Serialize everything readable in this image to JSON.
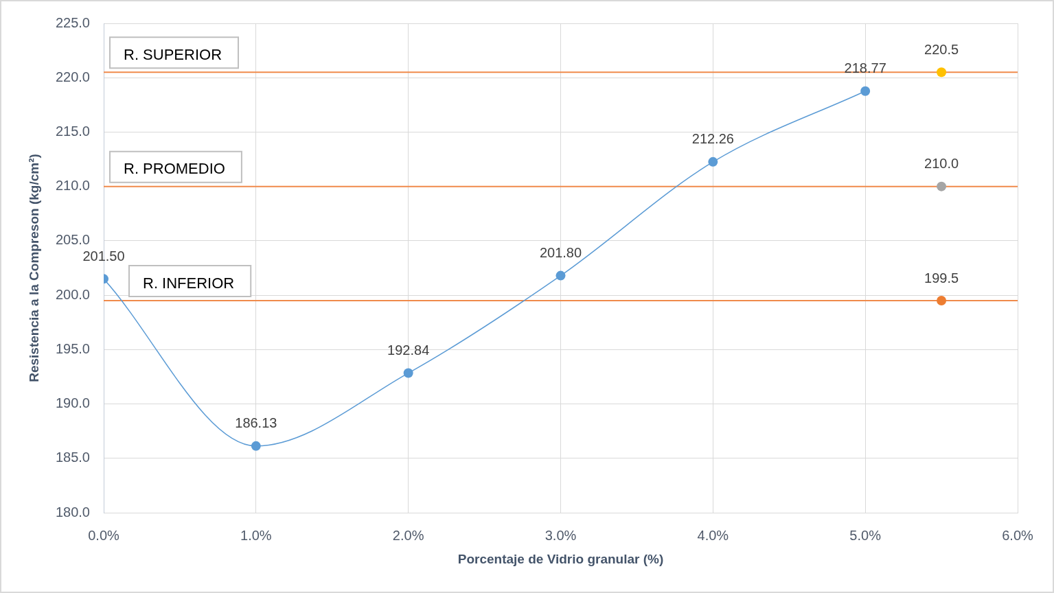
{
  "chart_data": {
    "type": "line",
    "xlabel": "Porcentaje de Vidrio granular (%)",
    "ylabel": "Resistencia a la Compreson (kg/cm²)",
    "series": [
      {
        "x": [
          0,
          1,
          2,
          3,
          4,
          5
        ],
        "values": [
          201.5,
          186.13,
          192.84,
          201.8,
          212.26,
          218.77
        ],
        "value_labels": [
          "201.50",
          "186.13",
          "192.84",
          "201.80",
          "212.26",
          "218.77"
        ],
        "color": "#5b9bd5"
      },
      {
        "type": "scatter",
        "x": [
          5.5
        ],
        "values": [
          220.5
        ],
        "value_labels": [
          "220.5"
        ],
        "color": "#ffc000"
      },
      {
        "type": "scatter",
        "x": [
          5.5
        ],
        "values": [
          210.0
        ],
        "value_labels": [
          "210.0"
        ],
        "color": "#a5a5a5"
      },
      {
        "type": "scatter",
        "x": [
          5.5
        ],
        "values": [
          199.5
        ],
        "value_labels": [
          "199.5"
        ],
        "color": "#ed7d31"
      }
    ],
    "xlim": [
      0,
      6
    ],
    "xticks": [
      {
        "value": 0,
        "label": "0.0%"
      },
      {
        "value": 1,
        "label": "1.0%"
      },
      {
        "value": 2,
        "label": "2.0%"
      },
      {
        "value": 3,
        "label": "3.0%"
      },
      {
        "value": 4,
        "label": "4.0%"
      },
      {
        "value": 5,
        "label": "5.0%"
      },
      {
        "value": 6,
        "label": "6.0%"
      }
    ],
    "ylim": [
      180,
      225
    ],
    "yticks": [
      {
        "value": 180,
        "label": "180.0"
      },
      {
        "value": 185,
        "label": "185.0"
      },
      {
        "value": 190,
        "label": "190.0"
      },
      {
        "value": 195,
        "label": "195.0"
      },
      {
        "value": 200,
        "label": "200.0"
      },
      {
        "value": 205,
        "label": "205.0"
      },
      {
        "value": 210,
        "label": "210.0"
      },
      {
        "value": 215,
        "label": "215.0"
      },
      {
        "value": 220,
        "label": "220.0"
      },
      {
        "value": 225,
        "label": "225.0"
      }
    ],
    "grid": true,
    "marker": "circle",
    "line_style": "solid",
    "ref_lines": [
      {
        "axis": "y",
        "value": 220.5,
        "label": "R. SUPERIOR",
        "color": "#f08a4b"
      },
      {
        "axis": "y",
        "value": 210.0,
        "label": "R. PROMEDIO",
        "color": "#f08a4b"
      },
      {
        "axis": "y",
        "value": 199.5,
        "label": "R. INFERIOR",
        "color": "#f08a4b"
      }
    ]
  }
}
